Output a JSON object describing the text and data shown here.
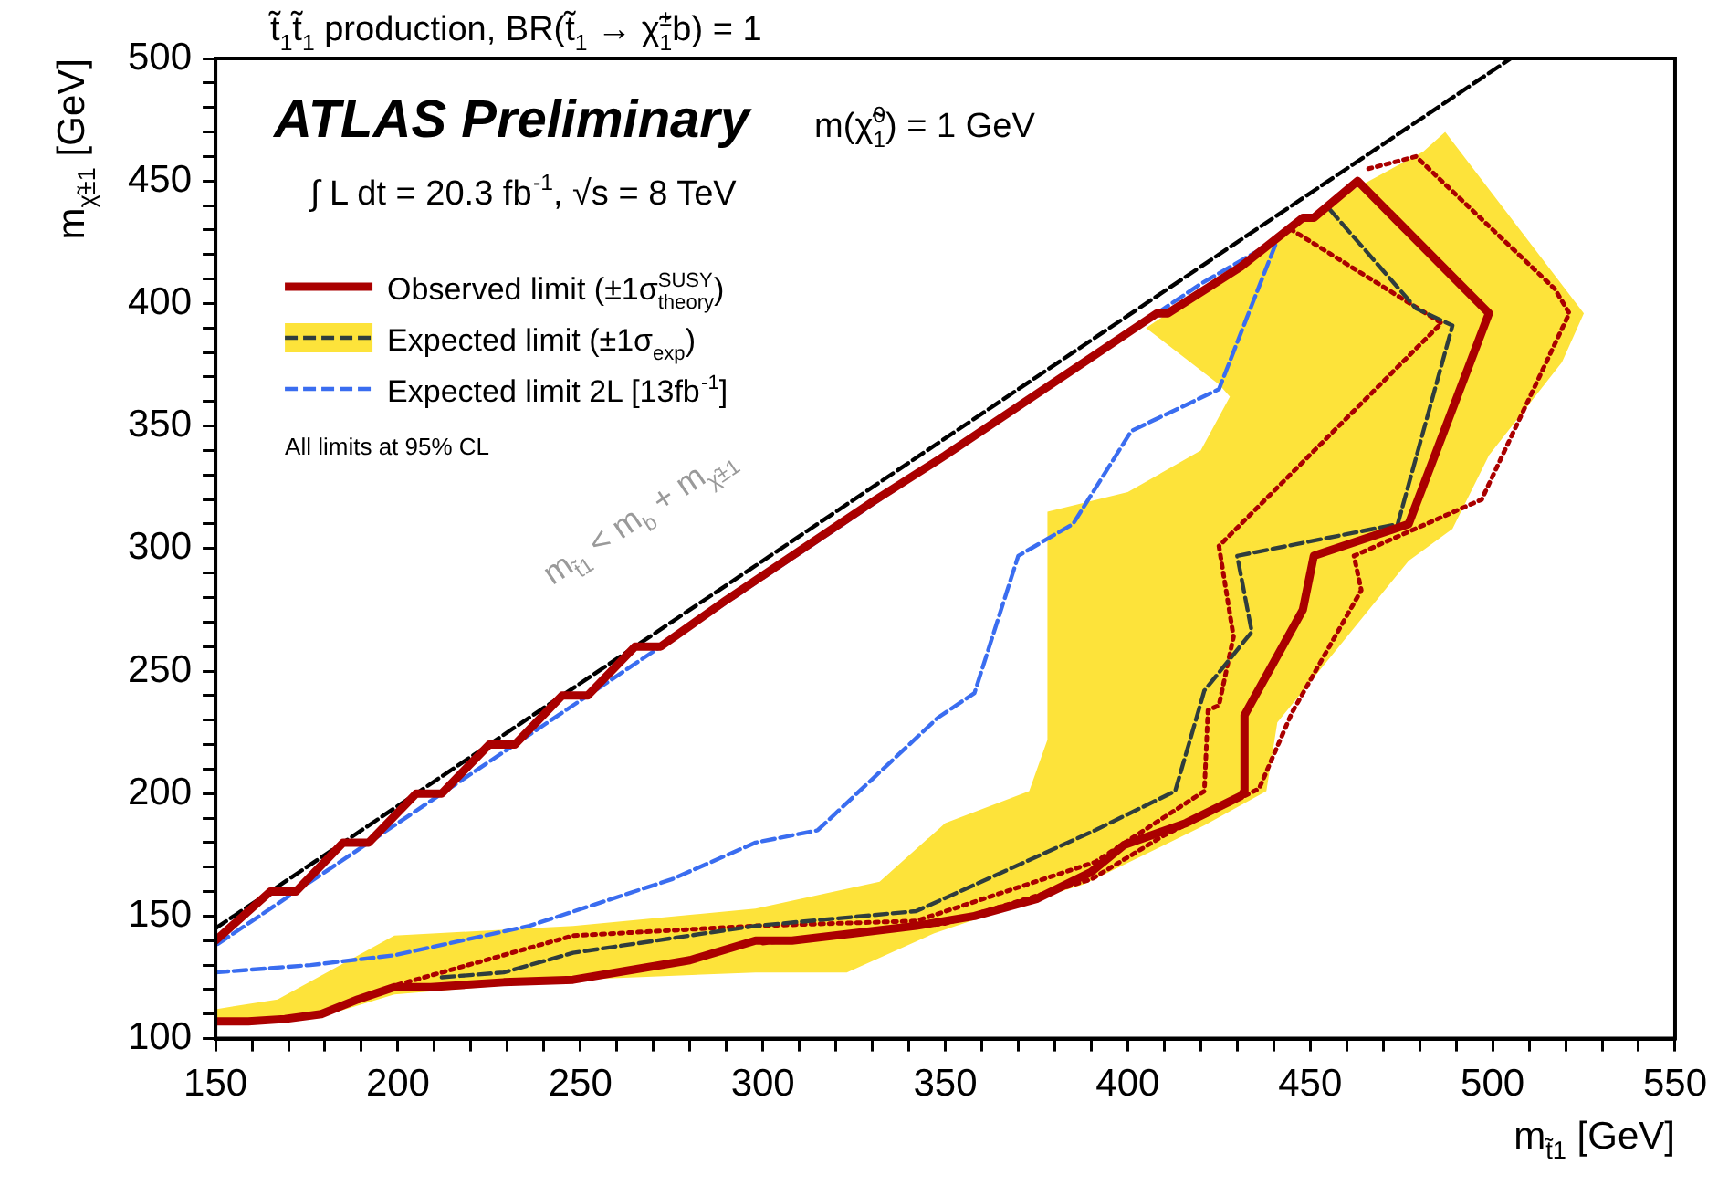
{
  "chart_data": {
    "type": "line",
    "title": "t̃$_{1}$t̃$_{1}$ production, BR(t̃$_{1}$ → χ̃$^{±}$$_{1}$b) = 1",
    "xlabel": "m$_{t̃1}$ [GeV]",
    "ylabel": "m$_{χ̃±1}$ [GeV]",
    "annotations": [
      "ATLAS Preliminary",
      "m(χ̃$^{0}$$_{1}$) = 1 GeV",
      "∫ L dt = 20.3 fb$^{-1}$, √s = 8 TeV",
      "All limits at 95% CL",
      "m$_{t̃1}$ < m$_{b}$ + m$_{χ̃±1}$"
    ],
    "xlim": [
      150,
      550
    ],
    "ylim": [
      100,
      500
    ],
    "xticks": [
      150,
      {
        "value": 160,
        "label": null
      },
      {
        "value": 170,
        "label": null
      },
      {
        "value": 180,
        "label": null
      },
      {
        "value": 190,
        "label": null
      },
      200,
      {
        "value": 210,
        "label": null
      },
      {
        "value": 220,
        "label": null
      },
      {
        "value": 230,
        "label": null
      },
      {
        "value": 240,
        "label": null
      },
      250,
      {
        "value": 260,
        "label": null
      },
      {
        "value": 270,
        "label": null
      },
      {
        "value": 280,
        "label": null
      },
      {
        "value": 290,
        "label": null
      },
      300,
      {
        "value": 310,
        "label": null
      },
      {
        "value": 320,
        "label": null
      },
      {
        "value": 330,
        "label": null
      },
      {
        "value": 340,
        "label": null
      },
      350,
      {
        "value": 360,
        "label": null
      },
      {
        "value": 370,
        "label": null
      },
      {
        "value": 380,
        "label": null
      },
      {
        "value": 390,
        "label": null
      },
      400,
      {
        "value": 410,
        "label": null
      },
      {
        "value": 420,
        "label": null
      },
      {
        "value": 430,
        "label": null
      },
      {
        "value": 440,
        "label": null
      },
      450,
      {
        "value": 460,
        "label": null
      },
      {
        "value": 470,
        "label": null
      },
      {
        "value": 480,
        "label": null
      },
      {
        "value": 490,
        "label": null
      },
      500,
      {
        "value": 510,
        "label": null
      },
      {
        "value": 520,
        "label": null
      },
      {
        "value": 530,
        "label": null
      },
      {
        "value": 540,
        "label": null
      },
      550
    ],
    "yticks": [
      100,
      {
        "value": 110,
        "label": null
      },
      {
        "value": 120,
        "label": null
      },
      {
        "value": 130,
        "label": null
      },
      {
        "value": 140,
        "label": null
      },
      150,
      {
        "value": 160,
        "label": null
      },
      {
        "value": 170,
        "label": null
      },
      {
        "value": 180,
        "label": null
      },
      {
        "value": 190,
        "label": null
      },
      200,
      {
        "value": 210,
        "label": null
      },
      {
        "value": 220,
        "label": null
      },
      {
        "value": 230,
        "label": null
      },
      {
        "value": 240,
        "label": null
      },
      250,
      {
        "value": 260,
        "label": null
      },
      {
        "value": 270,
        "label": null
      },
      {
        "value": 280,
        "label": null
      },
      {
        "value": 290,
        "label": null
      },
      300,
      {
        "value": 310,
        "label": null
      },
      {
        "value": 320,
        "label": null
      },
      {
        "value": 330,
        "label": null
      },
      {
        "value": 340,
        "label": null
      },
      350,
      {
        "value": 360,
        "label": null
      },
      {
        "value": 370,
        "label": null
      },
      {
        "value": 380,
        "label": null
      },
      {
        "value": 390,
        "label": null
      },
      400,
      {
        "value": 410,
        "label": null
      },
      {
        "value": 420,
        "label": null
      },
      {
        "value": 430,
        "label": null
      },
      {
        "value": 440,
        "label": null
      },
      450,
      {
        "value": 460,
        "label": null
      },
      {
        "value": 470,
        "label": null
      },
      {
        "value": 480,
        "label": null
      },
      {
        "value": 490,
        "label": null
      },
      500
    ],
    "legend": "top left",
    "marker": "none",
    "series": [
      {
        "name": "Observed limit (±1σ$^{SUSY}$$_{theory}$)",
        "type": "line",
        "line_style": "solid",
        "color": "#aa0000",
        "x": [
          150,
          159,
          169,
          179,
          189,
          199,
          209,
          229,
          248,
          268,
          280,
          298,
          308,
          325,
          342,
          358,
          375,
          390,
          399,
          416,
          431,
          432,
          432,
          448,
          451,
          477,
          499,
          463,
          451,
          448,
          431,
          411,
          408,
          390,
          368,
          350,
          330,
          310,
          290,
          272,
          265,
          252,
          245,
          232,
          225,
          212,
          205,
          192,
          185,
          172,
          165,
          150
        ],
        "values": [
          107,
          107,
          108,
          110,
          116,
          121,
          121,
          123,
          124,
          129,
          132,
          140,
          140,
          143,
          146,
          150,
          157,
          168,
          179,
          188,
          199,
          201,
          232,
          275,
          297,
          310,
          396,
          450,
          435,
          435,
          415,
          396,
          396,
          378,
          356,
          338,
          319,
          299,
          279,
          260,
          260,
          240,
          240,
          220,
          220,
          200,
          200,
          180,
          180,
          160,
          160,
          140
        ]
      },
      {
        "name": "Expected limit (±1σ$_{exp}$)",
        "type": "line",
        "line_style": "dashed",
        "color": "#2f3d3d",
        "x": [
          212,
          229,
          248,
          298,
          342,
          391,
          413,
          421,
          434,
          430,
          474,
          489,
          479,
          455
        ],
        "values": [
          125,
          127,
          135,
          146,
          152,
          185,
          201,
          242,
          266,
          297,
          310,
          391,
          398,
          439
        ]
      },
      {
        "type": "area",
        "color": "#fde33a",
        "x": [
          150,
          167,
          199,
          248,
          298,
          332,
          350,
          373,
          378,
          378,
          400,
          420,
          428,
          425,
          405,
          420,
          440,
          460,
          481,
          487,
          525,
          519,
          499,
          489,
          477,
          441,
          438,
          421,
          388,
          371,
          347,
          323,
          298,
          248,
          199,
          179,
          150
        ],
        "values": [
          112,
          116,
          142,
          146,
          153,
          164,
          188,
          201,
          222,
          315,
          323,
          340,
          362,
          367,
          390,
          405,
          425,
          445,
          462,
          470,
          396,
          376,
          338,
          308,
          295,
          229,
          201,
          187,
          163,
          155,
          143,
          127,
          127,
          124,
          118,
          109,
          107
        ]
      },
      {
        "name": "Expected limit 2L [13fb$^{-1}$]",
        "type": "line",
        "line_style": "dashed",
        "color": "#3a6df0",
        "x": [
          150,
          176,
          199,
          236,
          275,
          298,
          315,
          348,
          358,
          370,
          385,
          401,
          425,
          441,
          420,
          400,
          350,
          300,
          250,
          200,
          150
        ],
        "values": [
          127,
          130,
          134,
          146,
          165,
          180,
          185,
          231,
          241,
          297,
          310,
          348,
          365,
          426,
          408,
          388,
          338,
          288,
          238,
          188,
          138
        ]
      },
      {
        "type": "line",
        "line_style": "dashed",
        "color": "#000000",
        "x": [
          150,
          505
        ],
        "values": [
          145,
          500
        ]
      },
      {
        "type": "line",
        "line_style": "dotted",
        "color": "#aa0000",
        "x": [
          300,
          350,
          390,
          410,
          436,
          445,
          464,
          462,
          497,
          521,
          517,
          479,
          466
        ],
        "values": [
          139,
          147,
          165,
          183,
          202,
          233,
          283,
          297,
          320,
          396,
          406,
          460,
          455
        ]
      },
      {
        "type": "line",
        "line_style": "dotted",
        "color": "#aa0000",
        "x": [
          200,
          248,
          298,
          342,
          391,
          421,
          422,
          425,
          429,
          425,
          486,
          445
        ],
        "values": [
          122,
          142,
          146,
          148,
          172,
          201,
          234,
          236,
          264,
          301,
          392,
          430
        ]
      }
    ]
  }
}
